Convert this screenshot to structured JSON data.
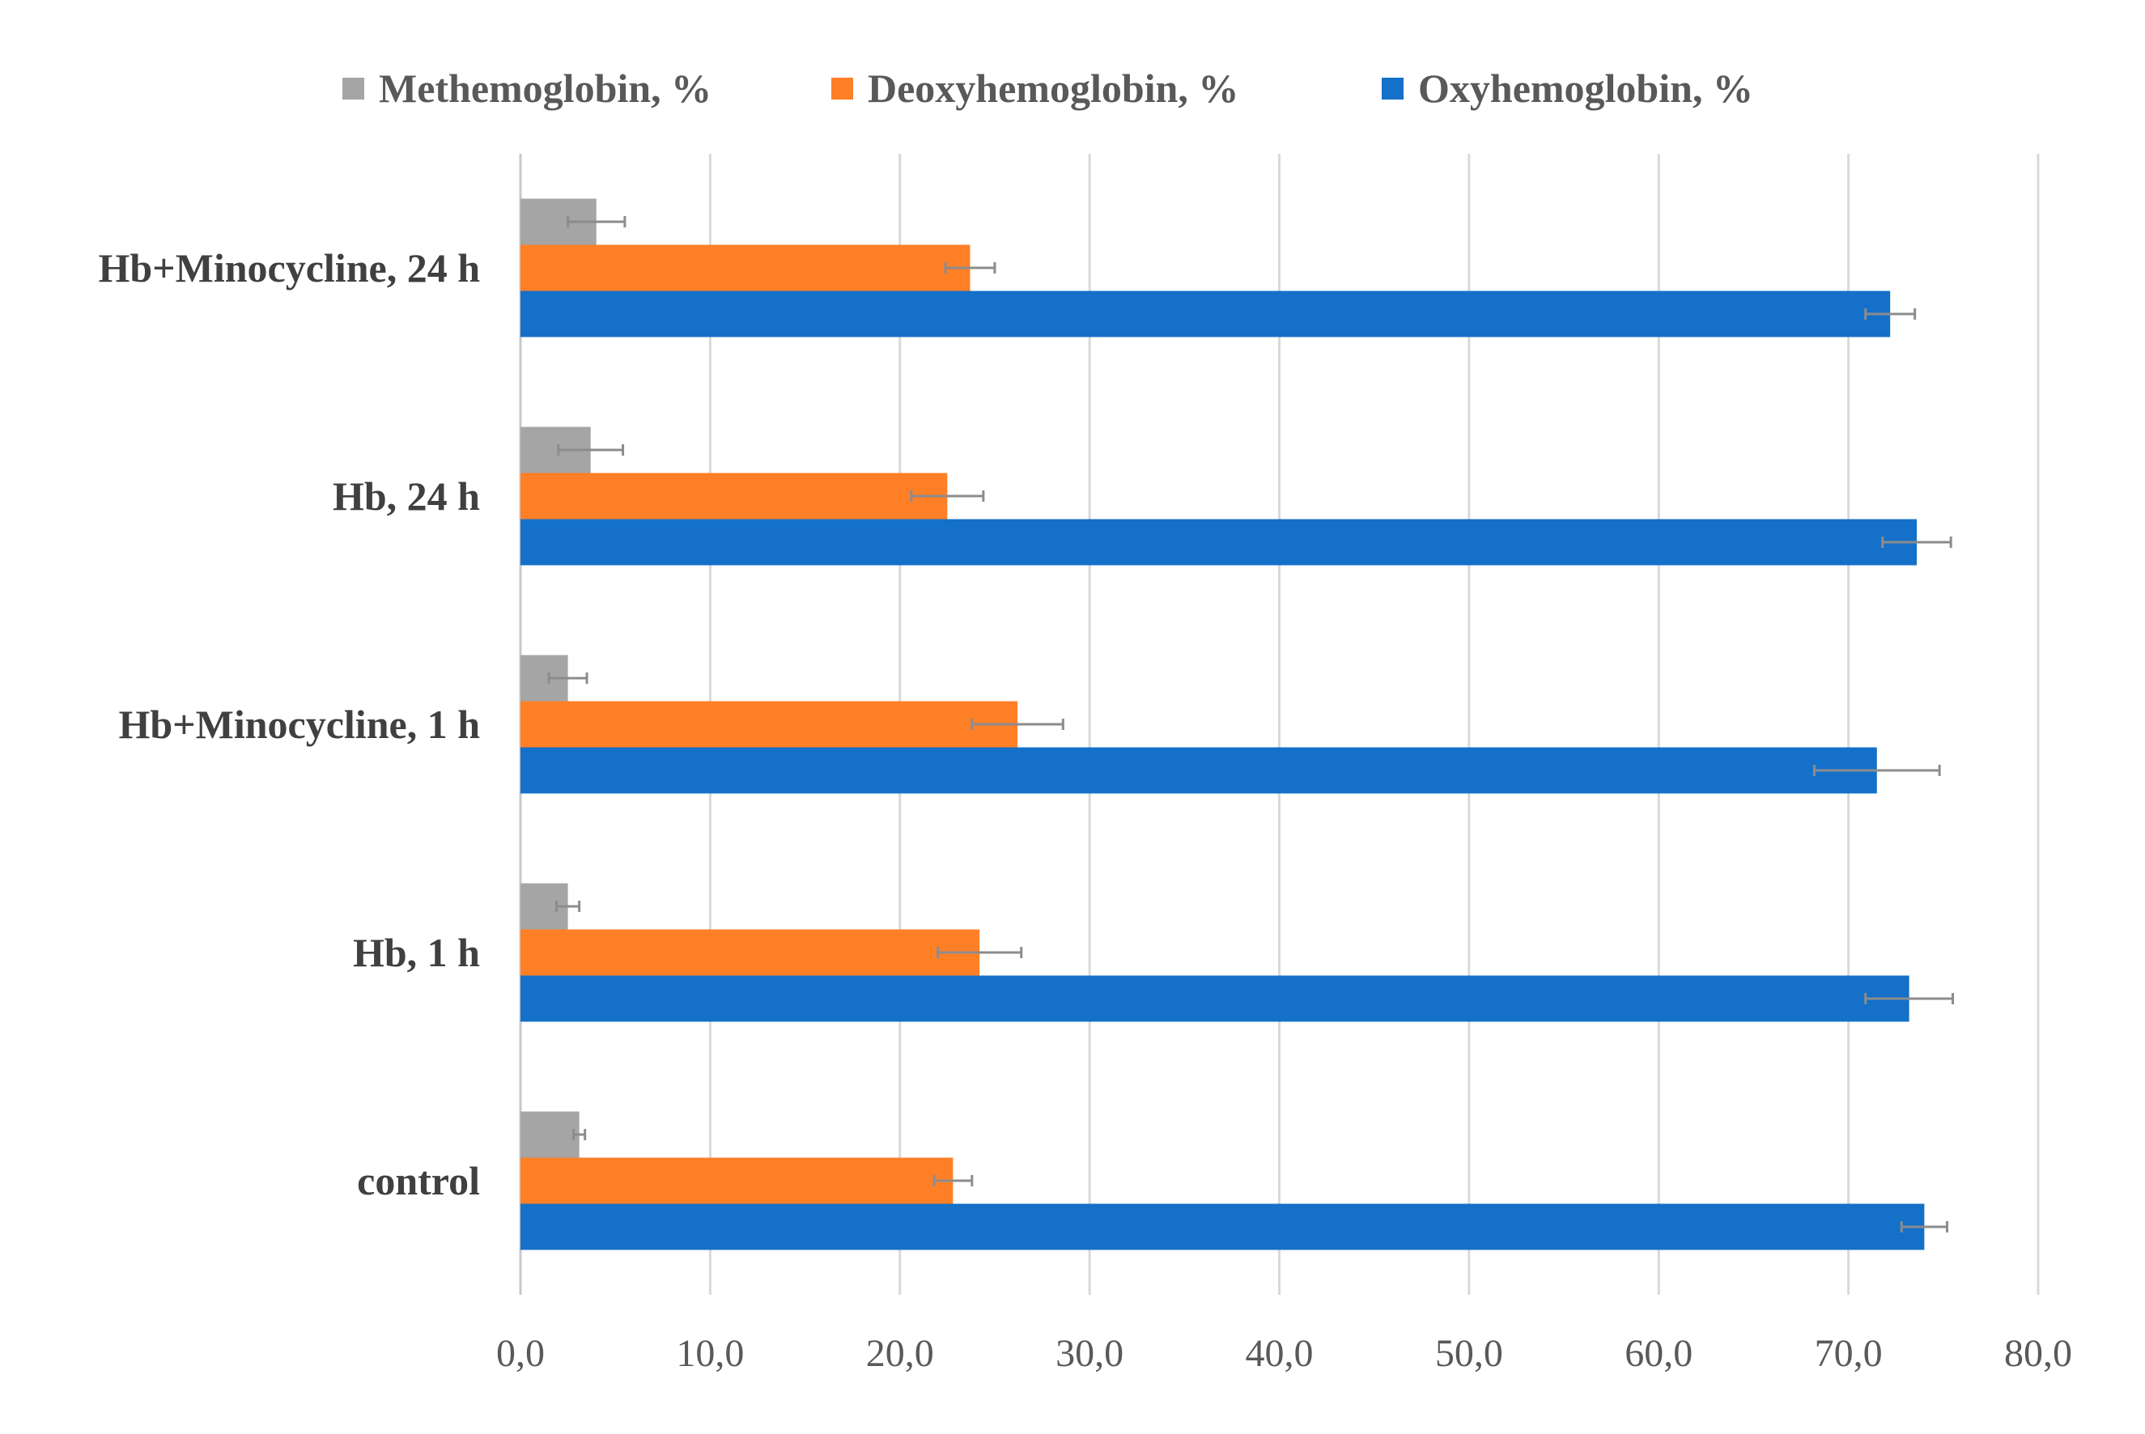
{
  "chart_data": {
    "type": "bar",
    "orientation": "horizontal",
    "categories": [
      "control",
      "Hb, 1 h",
      "Hb+Minocycline, 1 h",
      "Hb, 24 h",
      "Hb+Minocycline, 24 h"
    ],
    "series": [
      {
        "name": "Methemoglobin, %",
        "color": "#a5a5a5",
        "values": [
          3.1,
          2.5,
          2.5,
          3.7,
          4.0
        ],
        "errors": [
          0.3,
          0.6,
          1.0,
          1.7,
          1.5
        ]
      },
      {
        "name": "Deoxyhemoglobin, %",
        "color": "#ff7f27",
        "values": [
          22.8,
          24.2,
          26.2,
          22.5,
          23.7
        ],
        "errors": [
          1.0,
          2.2,
          2.4,
          1.9,
          1.3
        ]
      },
      {
        "name": "Oxyhemoglobin, %",
        "color": "#1470c8",
        "values": [
          74.0,
          73.2,
          71.5,
          73.6,
          72.2
        ],
        "errors": [
          1.2,
          2.3,
          3.3,
          1.8,
          1.3
        ]
      }
    ],
    "xlim": [
      0,
      80
    ],
    "xticks": [
      "0,0",
      "10,0",
      "20,0",
      "30,0",
      "40,0",
      "50,0",
      "60,0",
      "70,0",
      "80,0"
    ],
    "grid": true,
    "legend_position": "top"
  }
}
